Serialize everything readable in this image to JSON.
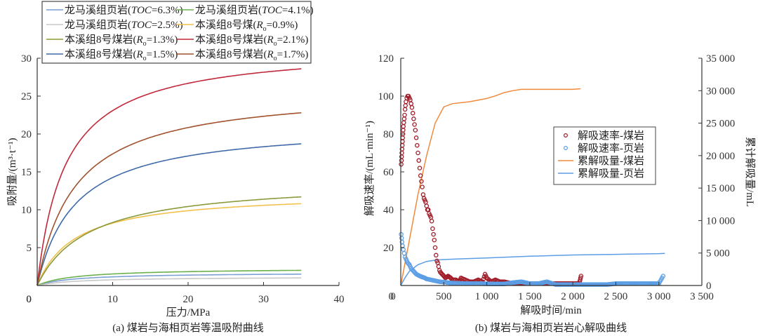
{
  "chart_data": [
    {
      "id": "a",
      "type": "line",
      "caption": "(a) 煤岩与海相页岩等温吸附曲线",
      "xlabel": "压力/MPa",
      "ylabel": "吸附量/(m³·t⁻¹)",
      "xlim": [
        0,
        40
      ],
      "ylim": [
        0,
        30
      ],
      "xticks": [
        0,
        10,
        20,
        30,
        40
      ],
      "yticks": [
        0,
        5,
        10,
        15,
        20,
        25,
        30
      ],
      "grid": false,
      "legend_position": "top",
      "series": [
        {
          "name": "龙马溪组页岩(TOC=6.3%)",
          "name_main": "龙马溪组页岩(",
          "name_italic": "TOC",
          "name_sub": "",
          "name_tail": "=6.3%)",
          "color": "#7c9fd4",
          "x_max": 35,
          "vL": 1.75,
          "pL": 5.0
        },
        {
          "name": "龙马溪组页岩(TOC=4.1%)",
          "name_main": "龙马溪组页岩(",
          "name_italic": "TOC",
          "name_sub": "",
          "name_tail": "=4.1%)",
          "color": "#6ab04c",
          "x_max": 35,
          "vL": 2.3,
          "pL": 5.0
        },
        {
          "name": "龙马溪组页岩(TOC=2.5%)",
          "name_main": "龙马溪组页岩(",
          "name_italic": "TOC",
          "name_sub": "",
          "name_tail": "=2.5%)",
          "color": "#c8c8c8",
          "x_max": 35,
          "vL": 1.2,
          "pL": 5.5
        },
        {
          "name": "本溪组8号煤(Ro=0.9%)",
          "name_main": "本溪组8号煤(",
          "name_italic": "R",
          "name_sub": "o",
          "name_tail": "=0.9%)",
          "color": "#f2c14e",
          "x_max": 35,
          "vL": 12.4,
          "pL": 5.0
        },
        {
          "name": "本溪组8号煤岩(Ro=1.3%)",
          "name_main": "本溪组8号煤岩(",
          "name_italic": "R",
          "name_sub": "o",
          "name_tail": "=1.3%)",
          "color": "#8a9a3a",
          "x_max": 35,
          "vL": 13.9,
          "pL": 6.8
        },
        {
          "name": "本溪组8号煤岩(Ro=2.1%)",
          "name_main": "本溪组8号煤岩(",
          "name_italic": "R",
          "name_sub": "o",
          "name_tail": "=2.1%)",
          "color": "#c0283a",
          "x_max": 35,
          "vL": 31.5,
          "pL": 3.7
        },
        {
          "name": "本溪组8号煤岩(Ro=1.5%)",
          "name_main": "本溪组8号煤岩(",
          "name_italic": "R",
          "name_sub": "o",
          "name_tail": "=1.5%)",
          "color": "#3f6aa8",
          "x_max": 35,
          "vL": 21.3,
          "pL": 5.0
        },
        {
          "name": "本溪组8号煤岩(Ro=1.7%)",
          "name_main": "本溪组8号煤岩(",
          "name_italic": "R",
          "name_sub": "o",
          "name_tail": "=1.7%)",
          "color": "#a0522d",
          "x_max": 35,
          "vL": 26.0,
          "pL": 5.0
        }
      ],
      "endpoints_at_35MPa": [
        1.5,
        2.0,
        1.0,
        10.8,
        11.7,
        28.6,
        18.7,
        22.8
      ]
    },
    {
      "id": "b",
      "type": "scatter",
      "caption": "(b) 煤岩与海相页岩岩心解吸曲线",
      "xlabel": "解吸时间/min",
      "ylabel": "解吸速率/(mL·min⁻¹)",
      "y2label": "累计解吸量/mL",
      "xlim": [
        0,
        3500
      ],
      "ylim": [
        0,
        120
      ],
      "y2lim": [
        0,
        35000
      ],
      "xticks": [
        0,
        500,
        1000,
        1500,
        2000,
        2500,
        3000,
        3500
      ],
      "xtick_labels": [
        "0",
        "500",
        "1 000",
        "1 500",
        "2 000",
        "2 500",
        "3 000",
        "3 500"
      ],
      "yticks": [
        0,
        20,
        40,
        60,
        80,
        100,
        120
      ],
      "y2ticks": [
        0,
        5000,
        10000,
        15000,
        20000,
        25000,
        30000,
        35000
      ],
      "y2tick_labels": [
        "0",
        "5 000",
        "10 000",
        "15 000",
        "20 000",
        "25 000",
        "30 000",
        "35 000"
      ],
      "grid": false,
      "legend_position": "center-right",
      "series": [
        {
          "name": "解吸速率-煤岩",
          "kind": "scatter",
          "axis": "left",
          "color": "#a01c28",
          "points": [
            [
              5,
              64
            ],
            [
              8,
              66
            ],
            [
              10,
              68
            ],
            [
              12,
              70
            ],
            [
              15,
              72
            ],
            [
              18,
              74
            ],
            [
              20,
              76
            ],
            [
              22,
              78
            ],
            [
              25,
              80
            ],
            [
              28,
              82
            ],
            [
              30,
              84
            ],
            [
              35,
              86
            ],
            [
              40,
              88
            ],
            [
              45,
              90
            ],
            [
              50,
              93
            ],
            [
              55,
              95
            ],
            [
              60,
              97
            ],
            [
              70,
              99
            ],
            [
              80,
              100
            ],
            [
              90,
              100
            ],
            [
              100,
              99
            ],
            [
              110,
              98
            ],
            [
              120,
              96
            ],
            [
              130,
              94
            ],
            [
              140,
              91
            ],
            [
              150,
              88
            ],
            [
              160,
              85
            ],
            [
              170,
              82
            ],
            [
              180,
              78
            ],
            [
              190,
              74
            ],
            [
              200,
              70
            ],
            [
              210,
              66
            ],
            [
              220,
              62
            ],
            [
              230,
              58
            ],
            [
              240,
              55
            ],
            [
              250,
              52
            ],
            [
              260,
              48
            ],
            [
              270,
              46
            ],
            [
              280,
              45
            ],
            [
              290,
              44
            ],
            [
              300,
              42
            ],
            [
              310,
              40
            ],
            [
              320,
              40
            ],
            [
              330,
              38
            ],
            [
              340,
              37
            ],
            [
              350,
              36
            ],
            [
              360,
              34
            ],
            [
              370,
              30
            ],
            [
              380,
              27
            ],
            [
              390,
              24
            ],
            [
              400,
              20
            ],
            [
              410,
              16
            ],
            [
              420,
              13
            ],
            [
              430,
              12
            ],
            [
              440,
              10
            ],
            [
              450,
              8
            ],
            [
              460,
              7
            ],
            [
              480,
              6
            ],
            [
              500,
              5
            ],
            [
              520,
              4
            ],
            [
              550,
              5
            ],
            [
              580,
              4
            ],
            [
              600,
              3
            ],
            [
              640,
              3
            ],
            [
              680,
              2
            ],
            [
              700,
              4
            ],
            [
              750,
              3
            ],
            [
              800,
              2
            ],
            [
              850,
              2
            ],
            [
              900,
              3
            ],
            [
              950,
              2
            ],
            [
              980,
              6
            ],
            [
              1000,
              4
            ],
            [
              1050,
              2
            ],
            [
              1100,
              3
            ],
            [
              1150,
              2
            ],
            [
              1200,
              2
            ],
            [
              1300,
              1
            ],
            [
              1400,
              1
            ],
            [
              1500,
              1
            ],
            [
              1600,
              1
            ],
            [
              1700,
              1
            ],
            [
              1800,
              1
            ],
            [
              1900,
              1
            ],
            [
              2000,
              1
            ],
            [
              2070,
              1
            ],
            [
              2080,
              2
            ],
            [
              2085,
              3
            ],
            [
              2090,
              4
            ],
            [
              2095,
              5
            ]
          ]
        },
        {
          "name": "解吸速率-页岩",
          "kind": "scatter",
          "axis": "left",
          "color": "#5b9ee6",
          "points": [
            [
              5,
              27
            ],
            [
              10,
              25
            ],
            [
              15,
              23
            ],
            [
              20,
              21
            ],
            [
              30,
              19
            ],
            [
              40,
              17
            ],
            [
              50,
              15
            ],
            [
              60,
              14
            ],
            [
              80,
              12
            ],
            [
              100,
              11
            ],
            [
              120,
              9
            ],
            [
              140,
              8
            ],
            [
              160,
              7
            ],
            [
              180,
              6
            ],
            [
              200,
              5.5
            ],
            [
              220,
              5
            ],
            [
              250,
              4.5
            ],
            [
              280,
              4
            ],
            [
              300,
              3.5
            ],
            [
              350,
              3
            ],
            [
              400,
              2.5
            ],
            [
              450,
              2
            ],
            [
              500,
              1.8
            ],
            [
              550,
              1.5
            ],
            [
              600,
              1.3
            ],
            [
              700,
              1.1
            ],
            [
              800,
              1
            ],
            [
              900,
              1
            ],
            [
              1000,
              0.9
            ],
            [
              1100,
              0.8
            ],
            [
              1200,
              0.8
            ],
            [
              1300,
              1.5
            ],
            [
              1400,
              2
            ],
            [
              1500,
              1
            ],
            [
              1600,
              1
            ],
            [
              1700,
              2
            ],
            [
              1800,
              0.5
            ],
            [
              1900,
              0.5
            ],
            [
              2000,
              0.5
            ],
            [
              2100,
              0.5
            ],
            [
              2200,
              0.5
            ],
            [
              2300,
              0.5
            ],
            [
              2400,
              0.5
            ],
            [
              2500,
              1
            ],
            [
              2600,
              1
            ],
            [
              2700,
              1
            ],
            [
              2800,
              1
            ],
            [
              2900,
              1
            ],
            [
              3000,
              1
            ],
            [
              3050,
              5
            ]
          ]
        },
        {
          "name": "累解吸量-煤岩",
          "kind": "line",
          "axis": "right",
          "color": "#f08a3c",
          "points": [
            [
              0,
              0
            ],
            [
              100,
              7000
            ],
            [
              200,
              14000
            ],
            [
              300,
              20000
            ],
            [
              400,
              25000
            ],
            [
              500,
              27500
            ],
            [
              600,
              28000
            ],
            [
              800,
              28300
            ],
            [
              1000,
              28800
            ],
            [
              1100,
              29200
            ],
            [
              1200,
              29700
            ],
            [
              1300,
              30000
            ],
            [
              1400,
              30200
            ],
            [
              1600,
              30200
            ],
            [
              1800,
              30200
            ],
            [
              2000,
              30200
            ],
            [
              2090,
              30300
            ]
          ]
        },
        {
          "name": "累解吸量-页岩",
          "kind": "line",
          "axis": "right",
          "color": "#5b9ee6",
          "points": [
            [
              0,
              0
            ],
            [
              50,
              1200
            ],
            [
              100,
              2200
            ],
            [
              200,
              3200
            ],
            [
              300,
              3700
            ],
            [
              400,
              3900
            ],
            [
              500,
              4000
            ],
            [
              700,
              4100
            ],
            [
              1000,
              4250
            ],
            [
              1500,
              4500
            ],
            [
              2000,
              4700
            ],
            [
              2500,
              4800
            ],
            [
              3000,
              4900
            ],
            [
              3070,
              4950
            ]
          ]
        }
      ]
    }
  ]
}
